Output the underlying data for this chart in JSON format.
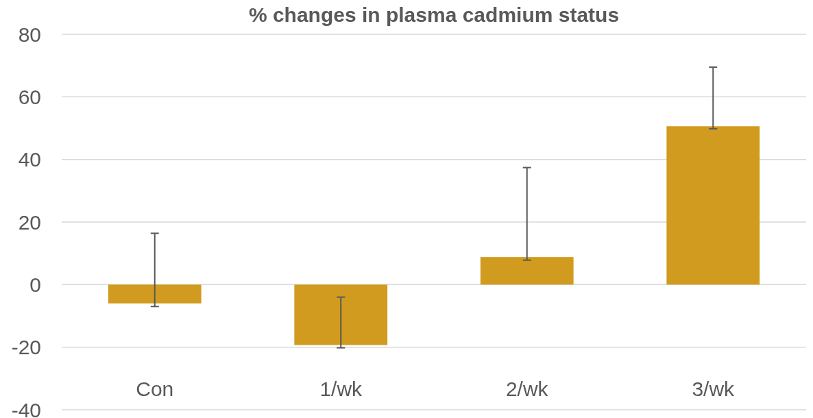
{
  "chart_data": {
    "type": "bar",
    "title": "% changes in plasma cadmium status",
    "categories": [
      "Con",
      "1/wk",
      "2/wk",
      "3/wk"
    ],
    "values": [
      -6,
      -19.3,
      8.8,
      50.6
    ],
    "color": "#d09b1e",
    "errors": [
      [
        -7,
        16.4
      ],
      [
        -20.2,
        -4
      ],
      [
        7.8,
        37.4
      ],
      [
        49.8,
        69.5
      ]
    ],
    "ylim": [
      -40,
      80
    ],
    "yticks": [
      -40,
      -20,
      0,
      20,
      40,
      60,
      80
    ],
    "grid": "y"
  }
}
